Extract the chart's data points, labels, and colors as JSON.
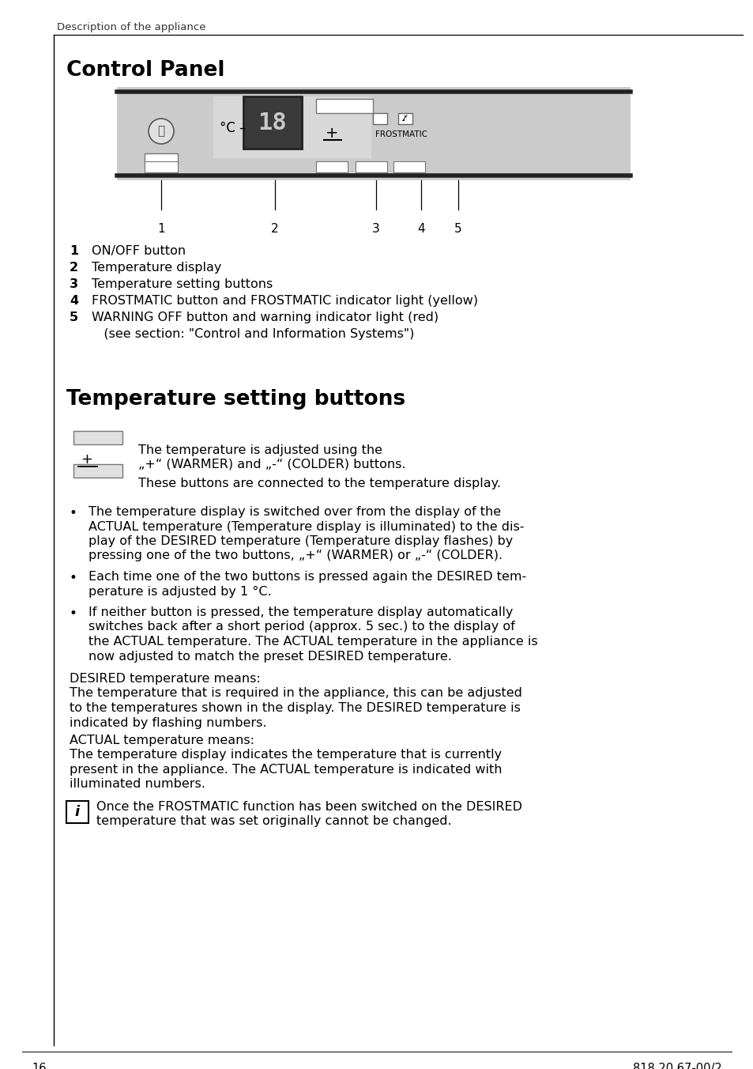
{
  "page_header": "Description of the appliance",
  "section1_title": "Control Panel",
  "section2_title": "Temperature setting buttons",
  "list_items": [
    [
      "1",
      "ON/OFF button"
    ],
    [
      "2",
      "Temperature display"
    ],
    [
      "3",
      "Temperature setting buttons"
    ],
    [
      "4",
      "FROSTMATIC button and FROSTMATIC indicator light (yellow)"
    ],
    [
      "5",
      "WARNING OFF button and warning indicator light (red)"
    ],
    [
      "",
      "   (see section: \"Control and Information Systems\")"
    ]
  ],
  "temp_button_desc1_line1": "The temperature is adjusted using the",
  "temp_button_desc1_line2": "„+“ (WARMER) and „-“ (COLDER) buttons.",
  "temp_button_desc2": "These buttons are connected to the temperature display.",
  "bullet1_lines": [
    "The temperature display is switched over from the display of the",
    "ACTUAL temperature (Temperature display is illuminated) to the dis-",
    "play of the DESIRED temperature (Temperature display flashes) by",
    "pressing one of the two buttons, „+“ (WARMER) or „-“ (COLDER)."
  ],
  "bullet2_lines": [
    "Each time one of the two buttons is pressed again the DESIRED tem-",
    "perature is adjusted by 1 °C."
  ],
  "bullet3_lines": [
    "If neither button is pressed, the temperature display automatically",
    "switches back after a short period (approx. 5 sec.) to the display of",
    "the ACTUAL temperature. The ACTUAL temperature in the appliance is",
    "now adjusted to match the preset DESIRED temperature."
  ],
  "desired_header": "DESIRED temperature means:",
  "desired_lines": [
    "The temperature that is required in the appliance, this can be adjusted",
    "to the temperatures shown in the display. The DESIRED temperature is",
    "indicated by flashing numbers."
  ],
  "actual_header": "ACTUAL temperature means:",
  "actual_lines": [
    "The temperature display indicates the temperature that is currently",
    "present in the appliance. The ACTUAL temperature is indicated with",
    "illuminated numbers."
  ],
  "info_line1": "Once the FROSTMATIC function has been switched on the DESIRED",
  "info_line2": "temperature that was set originally cannot be changed.",
  "page_number": "16",
  "doc_number": "818 20 67-00/2",
  "bg_color": "#ffffff",
  "panel_bg": "#cbcbcb",
  "text_color": "#000000"
}
